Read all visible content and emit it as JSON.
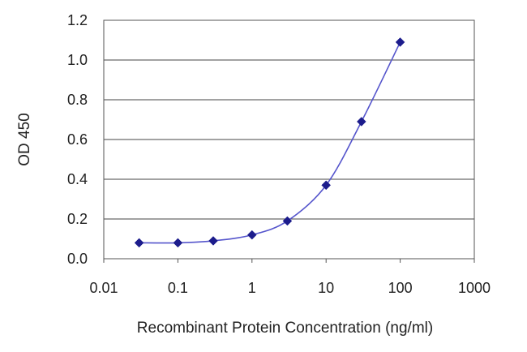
{
  "chart_data": {
    "type": "line",
    "xlabel": "Recombinant Protein Concentration (ng/ml)",
    "ylabel": "OD 450",
    "x_scale": "log",
    "xlim": [
      0.01,
      1000
    ],
    "ylim": [
      0,
      1.2
    ],
    "x_ticks": [
      "0.01",
      "0.1",
      "1",
      "10",
      "100",
      "1000"
    ],
    "y_ticks": [
      "0.0",
      "0.2",
      "0.4",
      "0.6",
      "0.8",
      "1.0",
      "1.2"
    ],
    "grid": "horizontal",
    "legend": "none",
    "series": [
      {
        "color": "#1c1c8c",
        "marker": "diamond",
        "x": [
          0.03,
          0.1,
          0.3,
          1,
          3,
          10,
          30,
          100
        ],
        "y": [
          0.08,
          0.08,
          0.09,
          0.12,
          0.19,
          0.37,
          0.69,
          1.09
        ]
      }
    ]
  }
}
